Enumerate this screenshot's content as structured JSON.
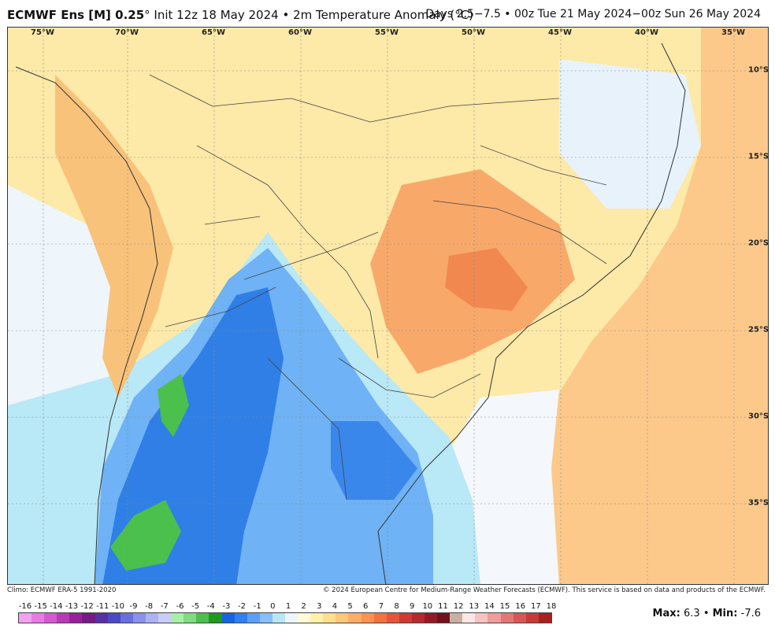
{
  "header": {
    "title_bold": "ECMWF Ens [M] 0.25",
    "title_rest": "° Init 12z 18 May 2024 • 2m Temperature Anomaly (°C)",
    "valid": "Days 2.5−7.5 • 00z Tue 21 May 2024−00z Sun 26 May 2024"
  },
  "map": {
    "lon_labels": [
      "75°W",
      "70°W",
      "65°W",
      "60°W",
      "55°W",
      "50°W",
      "45°W",
      "40°W",
      "35°W"
    ],
    "lat_labels": [
      "10°S",
      "15°S",
      "20°S",
      "25°S",
      "30°S",
      "35°S"
    ]
  },
  "footer": {
    "clim": "Climo: ECMWF ERA-5 1991-2020",
    "copyright": "© 2024 European Centre for Medium-Range Weather Forecasts (ECMWF). This service is based on data and products of the ECMWF."
  },
  "colorbar": {
    "ticks": [
      "-16",
      "-15",
      "-14",
      "-13",
      "-12",
      "-11",
      "-10",
      "-9",
      "-8",
      "-7",
      "-6",
      "-5",
      "-4",
      "-3",
      "-2",
      "-1",
      "0",
      "1",
      "2",
      "3",
      "4",
      "5",
      "6",
      "7",
      "8",
      "9",
      "10",
      "11",
      "12",
      "13",
      "14",
      "15",
      "16",
      "17",
      "18"
    ],
    "colors": [
      "#f49ff0",
      "#e87ae6",
      "#d458d2",
      "#b93ab8",
      "#9a1f9d",
      "#761a86",
      "#5a2fa3",
      "#4c49c6",
      "#6a6fe0",
      "#8c91ec",
      "#adb2f4",
      "#c8ccf8",
      "#a6f0a6",
      "#7fdc7f",
      "#4cc04c",
      "#1f9a1f",
      "#1565e0",
      "#2f80f0",
      "#5aa0f8",
      "#86c0fa",
      "#b7e7f5",
      "#eef6fb",
      "#fffbd6",
      "#fff1a8",
      "#ffe08a",
      "#ffc878",
      "#ffad66",
      "#ff9150",
      "#f27340",
      "#e4553a",
      "#cf3a34",
      "#b5282e",
      "#931a26",
      "#73121e",
      "#c8b0a4",
      "#ffe6e6",
      "#f7c2c2",
      "#ee9c9c",
      "#e47676",
      "#d85656",
      "#c63a3a",
      "#a82020"
    ]
  },
  "stats": {
    "max_label": "Max",
    "max_value": "6.3",
    "min_label": "Min",
    "min_value": "-7.6"
  },
  "chart_data": {
    "type": "heatmap",
    "title": "ECMWF Ens [M] 0.25° Init 12z 18 May 2024 • 2m Temperature Anomaly (°C)",
    "subtitle": "Days 2.5−7.5 • 00z Tue 21 May 2024−00z Sun 26 May 2024",
    "x_ticks": [
      "75°W",
      "70°W",
      "65°W",
      "60°W",
      "55°W",
      "50°W",
      "45°W",
      "40°W",
      "35°W"
    ],
    "y_ticks": [
      "10°S",
      "15°S",
      "20°S",
      "25°S",
      "30°S",
      "35°S"
    ],
    "colorbar_ticks": [
      -16,
      -15,
      -14,
      -13,
      -12,
      -11,
      -10,
      -9,
      -8,
      -7,
      -6,
      -5,
      -4,
      -3,
      -2,
      -1,
      0,
      1,
      2,
      3,
      4,
      5,
      6,
      7,
      8,
      9,
      10,
      11,
      12,
      13,
      14,
      15,
      16,
      17,
      18
    ],
    "max": 6.3,
    "min": -7.6,
    "units": "°C"
  }
}
